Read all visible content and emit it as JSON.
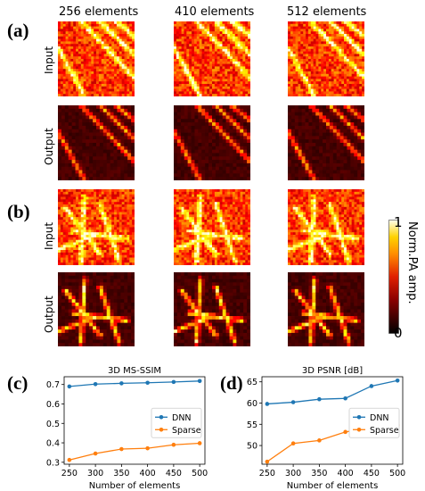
{
  "panels": {
    "a": "(a)",
    "b": "(b)",
    "c": "(c)",
    "d": "(d)"
  },
  "columns": [
    "256 elements",
    "410 elements",
    "512 elements"
  ],
  "rows": {
    "input": "Input",
    "output": "Output"
  },
  "colorbar": {
    "label": "Norm.PA amp.",
    "max": "1",
    "min": "0"
  },
  "colors": {
    "dnn": "#1f77b4",
    "sparse": "#ff7f0e"
  },
  "chart_data": [
    {
      "type": "line",
      "title": "3D MS-SSIM",
      "xlabel": "Number of elements",
      "ylabel": "",
      "x": [
        250,
        300,
        350,
        400,
        450,
        500
      ],
      "xticks": [
        "250",
        "300",
        "350",
        "400",
        "450",
        "500"
      ],
      "yticks": [
        "0.3",
        "0.4",
        "0.5",
        "0.6",
        "0.7"
      ],
      "xlim": [
        240,
        510
      ],
      "ylim": [
        0.29,
        0.74
      ],
      "legend": "center-right",
      "series": [
        {
          "name": "DNN",
          "values": [
            0.69,
            0.702,
            0.706,
            0.709,
            0.713,
            0.718
          ]
        },
        {
          "name": "Sparse",
          "values": [
            0.312,
            0.345,
            0.368,
            0.372,
            0.39,
            0.398
          ]
        }
      ]
    },
    {
      "type": "line",
      "title": "3D PSNR [dB]",
      "xlabel": "Number of elements",
      "ylabel": "",
      "x": [
        250,
        300,
        350,
        400,
        450,
        500
      ],
      "xticks": [
        "250",
        "300",
        "350",
        "400",
        "450",
        "500"
      ],
      "yticks": [
        "50",
        "55",
        "60",
        "65"
      ],
      "xlim": [
        240,
        510
      ],
      "ylim": [
        45.6,
        66.2
      ],
      "legend": "center-right",
      "series": [
        {
          "name": "DNN",
          "values": [
            59.8,
            60.2,
            60.9,
            61.1,
            64.0,
            65.3
          ]
        },
        {
          "name": "Sparse",
          "values": [
            46.2,
            50.5,
            51.2,
            53.2,
            54.2,
            54.8
          ]
        }
      ]
    }
  ]
}
